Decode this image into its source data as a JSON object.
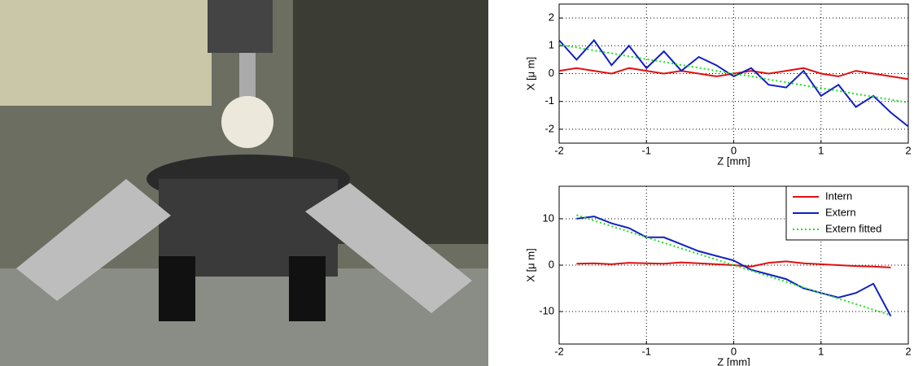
{
  "chart_data": [
    {
      "type": "line",
      "xlabel": "Z [mm]",
      "ylabel": "X [μ m]",
      "x": [
        -2,
        -1.8,
        -1.6,
        -1.4,
        -1.2,
        -1,
        -0.8,
        -0.6,
        -0.4,
        -0.2,
        0,
        0.2,
        0.4,
        0.6,
        0.8,
        1,
        1.2,
        1.4,
        1.6,
        1.8,
        2
      ],
      "xlim": [
        -2,
        2
      ],
      "xticks": [
        -2,
        -1,
        0,
        1,
        2
      ],
      "ylim": [
        -2.5,
        2.5
      ],
      "yticks": [
        -2,
        -1,
        0,
        1,
        2
      ],
      "grid": true,
      "series": [
        {
          "color": "#e01010",
          "style": "solid",
          "values": [
            0.1,
            0.2,
            0.1,
            0,
            0.2,
            0.1,
            0,
            0.1,
            0,
            -0.1,
            0,
            0.1,
            0,
            0.1,
            0.2,
            0,
            -0.1,
            0.1,
            0,
            -0.1,
            -0.2
          ]
        },
        {
          "color": "#1020c0",
          "style": "solid",
          "values": [
            1.2,
            0.5,
            1.2,
            0.3,
            1.0,
            0.2,
            0.8,
            0.1,
            0.6,
            0.3,
            -0.1,
            0.2,
            -0.4,
            -0.5,
            0.1,
            -0.8,
            -0.4,
            -1.2,
            -0.8,
            -1.4,
            -1.9
          ]
        },
        {
          "color": "#22dd22",
          "style": "dotted",
          "values": [
            1.04,
            0.94,
            0.83,
            0.73,
            0.62,
            0.52,
            0.42,
            0.31,
            0.21,
            0.1,
            0,
            -0.1,
            -0.21,
            -0.31,
            -0.42,
            -0.52,
            -0.62,
            -0.73,
            -0.83,
            -0.94,
            -1.04
          ]
        }
      ]
    },
    {
      "type": "line",
      "xlabel": "Z [mm]",
      "ylabel": "X [μ m]",
      "x": [
        -1.8,
        -1.6,
        -1.4,
        -1.2,
        -1,
        -0.8,
        -0.6,
        -0.4,
        -0.2,
        0,
        0.2,
        0.4,
        0.6,
        0.8,
        1,
        1.2,
        1.4,
        1.6,
        1.8
      ],
      "xlim": [
        -2,
        2
      ],
      "xticks": [
        -2,
        -1,
        0,
        1,
        2
      ],
      "ylim": [
        -17,
        17
      ],
      "yticks": [
        -10,
        0,
        10
      ],
      "grid": true,
      "legend": "upper right",
      "series": [
        {
          "name": "Intern",
          "color": "#e01010",
          "style": "solid",
          "values": [
            0.3,
            0.4,
            0.2,
            0.5,
            0.4,
            0.3,
            0.6,
            0.4,
            0.2,
            0,
            -0.3,
            0.5,
            0.8,
            0.4,
            0.2,
            0,
            -0.2,
            -0.3,
            -0.5
          ]
        },
        {
          "name": "Extern",
          "color": "#1020c0",
          "style": "solid",
          "values": [
            10,
            10.5,
            9,
            8,
            6,
            6,
            4.5,
            3,
            2,
            1,
            -1,
            -2,
            -3,
            -5,
            -6,
            -7,
            -6,
            -4,
            -11
          ]
        },
        {
          "name": "Extern fitted",
          "color": "#22dd22",
          "style": "dotted",
          "values": [
            10.8,
            9.6,
            8.4,
            7.2,
            6,
            4.8,
            3.6,
            2.4,
            1.2,
            0,
            -1.2,
            -2.4,
            -3.6,
            -4.8,
            -6,
            -7.2,
            -8.4,
            -9.6,
            -10.8
          ]
        }
      ]
    }
  ]
}
